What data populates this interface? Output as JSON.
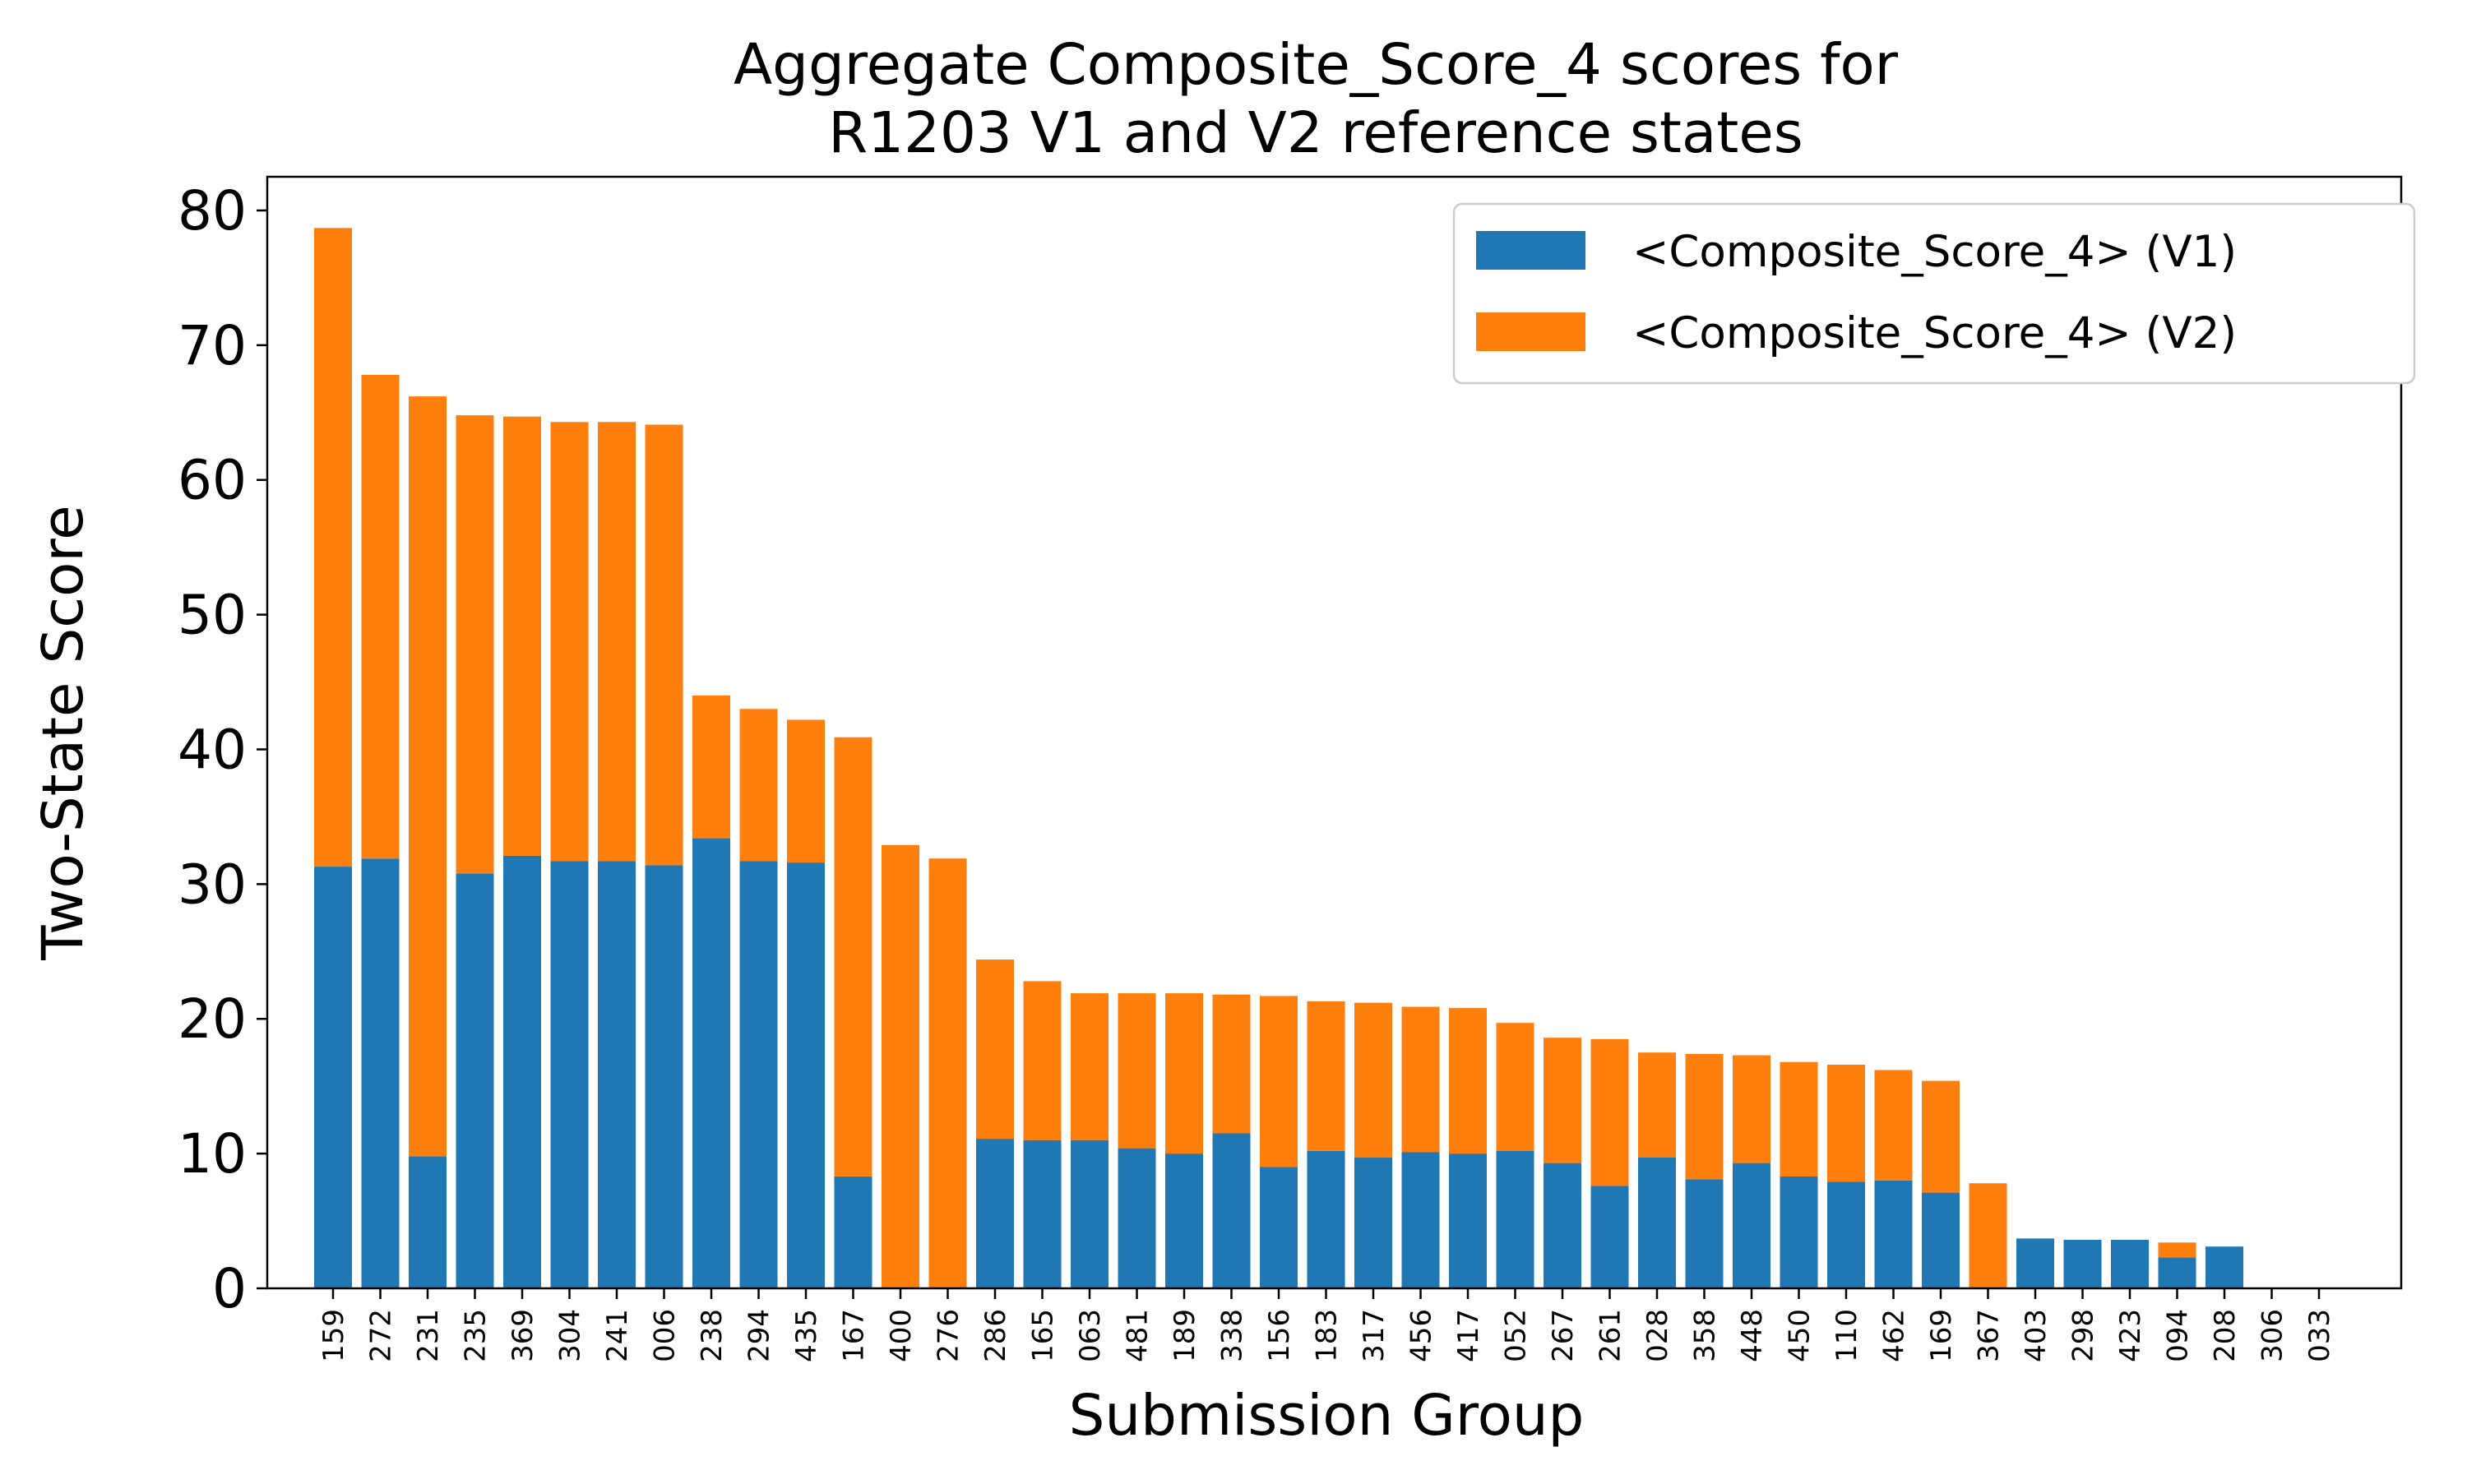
{
  "chart_data": {
    "type": "bar",
    "stacked": true,
    "title": "Aggregate Composite_Score_4 scores for\nR1203 V1 and V2 reference states",
    "title_lines": [
      "Aggregate Composite_Score_4 scores for",
      "R1203 V1 and V2 reference states"
    ],
    "xlabel": "Submission Group",
    "ylabel": "Two-State Score",
    "ylim": [
      0,
      82.5
    ],
    "yticks": [
      0,
      10,
      20,
      30,
      40,
      50,
      60,
      70,
      80
    ],
    "grid": false,
    "legend_position": "top-right",
    "categories": [
      "159",
      "272",
      "231",
      "235",
      "369",
      "304",
      "241",
      "006",
      "238",
      "294",
      "435",
      "167",
      "400",
      "276",
      "286",
      "165",
      "063",
      "481",
      "189",
      "338",
      "156",
      "183",
      "317",
      "456",
      "417",
      "052",
      "267",
      "261",
      "028",
      "358",
      "448",
      "450",
      "110",
      "462",
      "169",
      "367",
      "403",
      "298",
      "423",
      "094",
      "208",
      "306",
      "033"
    ],
    "series": [
      {
        "name": "<Composite_Score_4> (V1)",
        "color": "#1f77b4",
        "values": [
          31.3,
          31.9,
          9.8,
          30.8,
          32.1,
          31.7,
          31.7,
          31.4,
          33.4,
          31.7,
          31.6,
          8.3,
          0,
          0,
          11.1,
          11.0,
          11.0,
          10.4,
          10.0,
          11.5,
          9.0,
          10.2,
          9.7,
          10.1,
          10.0,
          10.2,
          9.3,
          7.6,
          9.7,
          8.1,
          9.3,
          8.3,
          7.9,
          8.0,
          7.1,
          0,
          3.7,
          3.6,
          3.6,
          2.3,
          3.1,
          0,
          0
        ]
      },
      {
        "name": "<Composite_Score_4> (V2)",
        "color": "#ff7f0e",
        "values": [
          47.4,
          35.9,
          56.4,
          34.0,
          32.6,
          32.6,
          32.6,
          32.7,
          10.6,
          11.3,
          10.6,
          32.6,
          32.9,
          31.9,
          13.3,
          11.8,
          10.9,
          11.5,
          11.9,
          10.3,
          12.7,
          11.1,
          11.5,
          10.8,
          10.8,
          9.5,
          9.3,
          10.9,
          7.8,
          9.3,
          8.0,
          8.5,
          8.7,
          8.2,
          8.3,
          7.8,
          0,
          0,
          0,
          1.1,
          0,
          0,
          0
        ]
      }
    ]
  }
}
